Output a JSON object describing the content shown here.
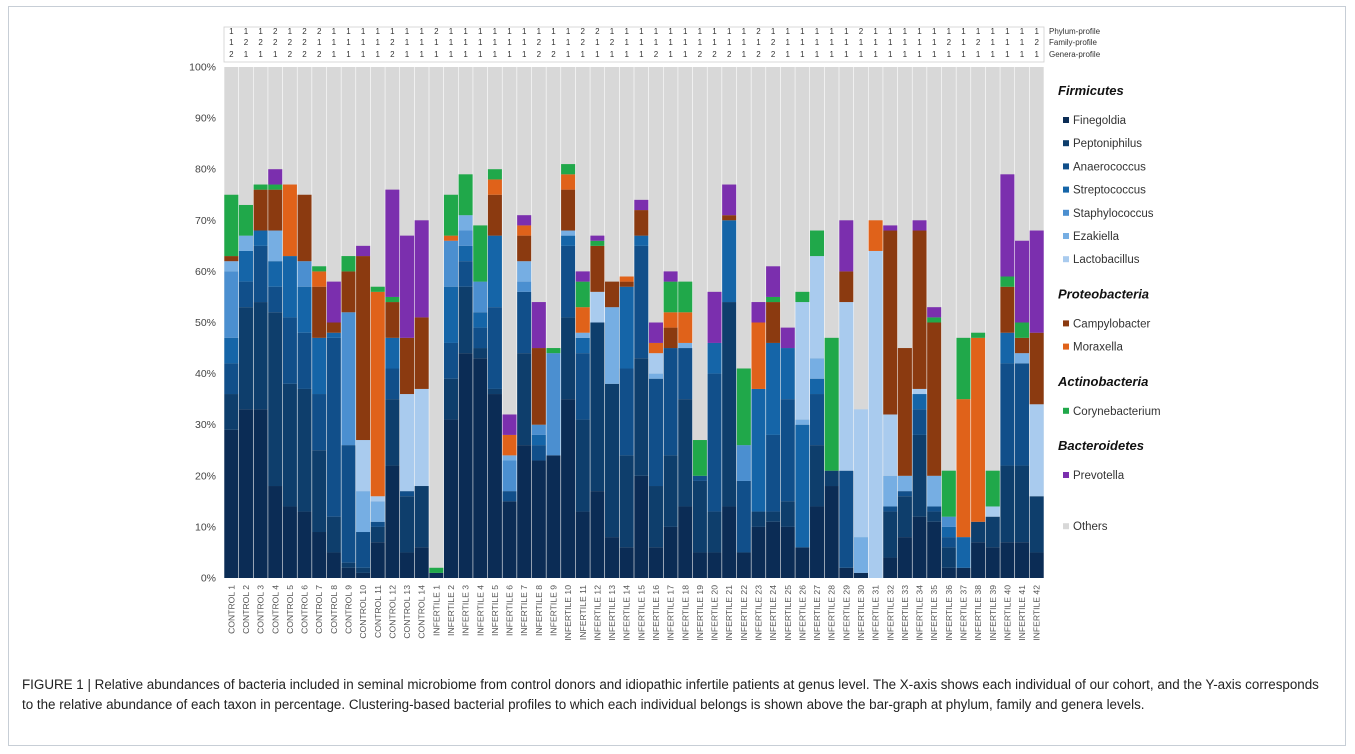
{
  "caption": "FIGURE 1 | Relative abundances of bacteria included in seminal microbiome from control donors and idiopathic infertile patients at genus level. The X-axis shows each individual of our cohort, and the Y-axis corresponds to the relative abundance of each taxon in percentage. Clustering-based bacterial profiles to which each individual belongs is shown above the bar-graph at phylum, family and genera levels.",
  "chart_data": {
    "type": "bar",
    "stacked": true,
    "ylim": [
      0,
      100
    ],
    "yticks": [
      "0%",
      "10%",
      "20%",
      "30%",
      "40%",
      "50%",
      "60%",
      "70%",
      "80%",
      "90%",
      "100%"
    ],
    "grid": false,
    "legend_position": "right",
    "categories": [
      "CONTROL 1",
      "CONTROL 2",
      "CONTROL 3",
      "CONTROL 4",
      "CONTROL 5",
      "CONTROL 6",
      "CONTROL 7",
      "CONTROL 8",
      "CONTROL 9",
      "CONTROL 10",
      "CONTROL 11",
      "CONTROL 12",
      "CONTROL 13",
      "CONTROL 14",
      "INFERTILE 1",
      "INFERTILE 2",
      "INFERTILE 3",
      "INFERTILE 4",
      "INFERTILE 5",
      "INFERTILE 6",
      "INFERTILE 7",
      "INFERTILE 8",
      "INFERTILE 9",
      "INFERTILE 10",
      "INFERTILE 11",
      "INFERTILE 12",
      "INFERTILE 13",
      "INFERTILE 14",
      "INFERTILE 15",
      "INFERTILE 16",
      "INFERTILE 17",
      "INFERTILE 18",
      "INFERTILE 19",
      "INFERTILE 20",
      "INFERTILE 21",
      "INFERTILE 22",
      "INFERTILE 23",
      "INFERTILE 24",
      "INFERTILE 25",
      "INFERTILE 26",
      "INFERTILE 27",
      "INFERTILE 28",
      "INFERTILE 29",
      "INFERTILE 30",
      "INFERTILE 31",
      "INFERTILE 32",
      "INFERTILE 33",
      "INFERTILE 34",
      "INFERTILE 35",
      "INFERTILE 36",
      "INFERTILE 37",
      "INFERTILE 38",
      "INFERTILE 39",
      "INFERTILE 40",
      "INFERTILE 41",
      "INFERTILE 42"
    ],
    "profiles": [
      {
        "name": "Phylum-profile",
        "values": [
          1,
          1,
          1,
          2,
          1,
          2,
          2,
          1,
          1,
          1,
          1,
          1,
          1,
          1,
          2,
          1,
          1,
          1,
          1,
          1,
          1,
          1,
          1,
          1,
          2,
          2,
          1,
          1,
          1,
          1,
          1,
          1,
          1,
          1,
          1,
          1,
          2,
          1,
          1,
          1,
          1,
          1,
          1,
          2,
          1,
          1,
          1,
          1,
          1,
          1,
          1,
          1,
          1,
          1,
          1,
          1
        ]
      },
      {
        "name": "Family-profile",
        "values": [
          1,
          2,
          2,
          2,
          2,
          2,
          1,
          1,
          1,
          1,
          1,
          2,
          1,
          1,
          1,
          1,
          1,
          1,
          1,
          1,
          1,
          2,
          1,
          1,
          2,
          1,
          2,
          1,
          1,
          1,
          1,
          1,
          1,
          1,
          1,
          1,
          1,
          2,
          1,
          1,
          1,
          1,
          1,
          1,
          1,
          1,
          1,
          1,
          1,
          2,
          1,
          2,
          1,
          1,
          1,
          2
        ]
      },
      {
        "name": "Genera-profile",
        "values": [
          2,
          1,
          1,
          1,
          2,
          2,
          2,
          1,
          1,
          1,
          1,
          2,
          1,
          1,
          1,
          1,
          1,
          1,
          1,
          1,
          1,
          2,
          2,
          1,
          1,
          1,
          1,
          1,
          1,
          2,
          1,
          1,
          2,
          2,
          2,
          1,
          2,
          2,
          1,
          1,
          1,
          1,
          1,
          1,
          1,
          1,
          1,
          1,
          1,
          1,
          1,
          1,
          1,
          1,
          1,
          1
        ]
      }
    ],
    "legend_groups": [
      {
        "label": "Firmicutes",
        "items": [
          "Finegoldia",
          "Peptoniphilus",
          "Anaerococcus",
          "Streptococcus",
          "Staphylococcus",
          "Ezakiella",
          "Lactobacillus"
        ]
      },
      {
        "label": "Proteobacteria",
        "items": [
          "Campylobacter",
          "Moraxella"
        ]
      },
      {
        "label": "Actinobacteria",
        "items": [
          "Corynebacterium"
        ]
      },
      {
        "label": "Bacteroidetes",
        "items": [
          "Prevotella"
        ]
      },
      {
        "label": "",
        "items": [
          "Others"
        ]
      }
    ],
    "series": [
      {
        "name": "Finegoldia",
        "color": "#0b2c55",
        "values": [
          29,
          33,
          33,
          18,
          14,
          13,
          9,
          5,
          2,
          1,
          7,
          22,
          5,
          6,
          1,
          31,
          44,
          43,
          36,
          15,
          26,
          23,
          24,
          35,
          13,
          17,
          8,
          6,
          20,
          6,
          10,
          14,
          5,
          5,
          14,
          5,
          10,
          11,
          10,
          6,
          14,
          18,
          2,
          1,
          0,
          4,
          8,
          12,
          11,
          2,
          2,
          7,
          6,
          7,
          7,
          5
        ]
      },
      {
        "name": "Peptoniphilus",
        "color": "#0e3e6c",
        "values": [
          7,
          20,
          21,
          34,
          24,
          24,
          16,
          7,
          1,
          1,
          3,
          13,
          11,
          12,
          0,
          8,
          13,
          2,
          1,
          0,
          18,
          0,
          0,
          16,
          18,
          33,
          30,
          18,
          23,
          12,
          14,
          21,
          14,
          8,
          40,
          0,
          3,
          2,
          5,
          0,
          12,
          3,
          0,
          0,
          0,
          9,
          8,
          16,
          2,
          4,
          0,
          4,
          6,
          15,
          15,
          11
        ]
      },
      {
        "name": "Anaerococcus",
        "color": "#114f8a",
        "values": [
          6,
          5,
          11,
          5,
          13,
          11,
          11,
          35,
          23,
          7,
          1,
          6,
          1,
          0,
          0,
          7,
          5,
          4,
          16,
          2,
          12,
          3,
          0,
          14,
          13,
          0,
          0,
          17,
          22,
          21,
          21,
          10,
          1,
          27,
          0,
          14,
          0,
          15,
          20,
          0,
          10,
          0,
          19,
          0,
          0,
          1,
          1,
          5,
          1,
          2,
          0,
          0,
          0,
          20,
          20,
          0
        ]
      },
      {
        "name": "Streptococcus",
        "color": "#1565a8",
        "values": [
          5,
          6,
          3,
          5,
          12,
          9,
          11,
          1,
          0,
          0,
          0,
          6,
          0,
          0,
          0,
          11,
          3,
          3,
          14,
          0,
          0,
          2,
          0,
          2,
          3,
          0,
          0,
          16,
          2,
          0,
          0,
          0,
          0,
          6,
          16,
          0,
          24,
          18,
          10,
          24,
          3,
          0,
          0,
          0,
          0,
          0,
          0,
          3,
          0,
          2,
          6,
          0,
          0,
          6,
          0,
          0
        ]
      },
      {
        "name": "Staphylococcus",
        "color": "#4b8fd0",
        "values": [
          13,
          0,
          0,
          0,
          0,
          5,
          0,
          0,
          26,
          0,
          0,
          0,
          0,
          0,
          0,
          9,
          3,
          6,
          0,
          6,
          2,
          2,
          20,
          0,
          0,
          0,
          0,
          0,
          0,
          0,
          0,
          0,
          0,
          0,
          0,
          7,
          0,
          0,
          0,
          0,
          0,
          0,
          0,
          0,
          0,
          0,
          0,
          0,
          0,
          2,
          0,
          0,
          0,
          0,
          0,
          0
        ]
      },
      {
        "name": "Ezakiella",
        "color": "#76aee3",
        "values": [
          2,
          3,
          0,
          6,
          0,
          0,
          0,
          0,
          0,
          8,
          4,
          0,
          0,
          0,
          0,
          0,
          3,
          0,
          0,
          1,
          4,
          0,
          0,
          1,
          1,
          0,
          15,
          0,
          0,
          1,
          0,
          1,
          0,
          0,
          0,
          0,
          0,
          0,
          0,
          1,
          4,
          0,
          0,
          7,
          0,
          6,
          3,
          0,
          6,
          0,
          0,
          0,
          0,
          0,
          2,
          0
        ]
      },
      {
        "name": "Lactobacillus",
        "color": "#a9cbee",
        "values": [
          0,
          0,
          0,
          0,
          0,
          0,
          0,
          0,
          0,
          10,
          1,
          0,
          19,
          19,
          0,
          0,
          0,
          0,
          0,
          0,
          0,
          0,
          0,
          0,
          0,
          6,
          0,
          0,
          0,
          4,
          0,
          0,
          0,
          0,
          0,
          0,
          0,
          0,
          0,
          23,
          20,
          0,
          33,
          25,
          64,
          12,
          0,
          1,
          0,
          0,
          0,
          0,
          2,
          0,
          0,
          18
        ]
      },
      {
        "name": "Campylobacter",
        "color": "#8b3a10",
        "values": [
          1,
          0,
          8,
          8,
          0,
          13,
          10,
          2,
          8,
          36,
          0,
          7,
          11,
          14,
          0,
          0,
          0,
          0,
          8,
          0,
          5,
          15,
          0,
          8,
          0,
          9,
          5,
          1,
          5,
          0,
          4,
          0,
          0,
          0,
          1,
          0,
          0,
          8,
          0,
          0,
          0,
          0,
          6,
          0,
          0,
          36,
          25,
          31,
          30,
          0,
          0,
          0,
          0,
          9,
          3,
          14
        ]
      },
      {
        "name": "Moraxella",
        "color": "#e0621a",
        "values": [
          0,
          0,
          0,
          0,
          14,
          0,
          3,
          0,
          0,
          0,
          40,
          0,
          0,
          0,
          0,
          1,
          0,
          0,
          3,
          4,
          2,
          0,
          0,
          3,
          5,
          0,
          0,
          1,
          0,
          2,
          3,
          6,
          0,
          0,
          0,
          0,
          13,
          0,
          0,
          0,
          0,
          0,
          0,
          0,
          6,
          0,
          0,
          0,
          0,
          0,
          27,
          36,
          0,
          0,
          0,
          0
        ]
      },
      {
        "name": "Corynebacterium",
        "color": "#20a84a",
        "values": [
          12,
          6,
          1,
          1,
          0,
          0,
          1,
          0,
          3,
          0,
          1,
          1,
          0,
          0,
          1,
          8,
          8,
          11,
          2,
          0,
          0,
          0,
          1,
          2,
          5,
          1,
          0,
          0,
          0,
          0,
          6,
          6,
          7,
          0,
          0,
          15,
          0,
          1,
          0,
          2,
          5,
          26,
          0,
          0,
          0,
          0,
          0,
          0,
          1,
          9,
          12,
          1,
          7,
          2,
          3,
          0
        ]
      },
      {
        "name": "Prevotella",
        "color": "#7b2fae",
        "values": [
          0,
          0,
          0,
          3,
          0,
          0,
          0,
          8,
          0,
          2,
          0,
          21,
          20,
          19,
          0,
          0,
          0,
          0,
          0,
          4,
          2,
          9,
          0,
          0,
          2,
          1,
          0,
          0,
          2,
          4,
          2,
          0,
          0,
          10,
          6,
          0,
          4,
          6,
          4,
          0,
          0,
          0,
          10,
          0,
          0,
          1,
          0,
          2,
          2,
          0,
          0,
          0,
          0,
          20,
          16,
          20
        ]
      }
    ],
    "others": {
      "name": "Others",
      "color": "#d8d8d8"
    }
  }
}
